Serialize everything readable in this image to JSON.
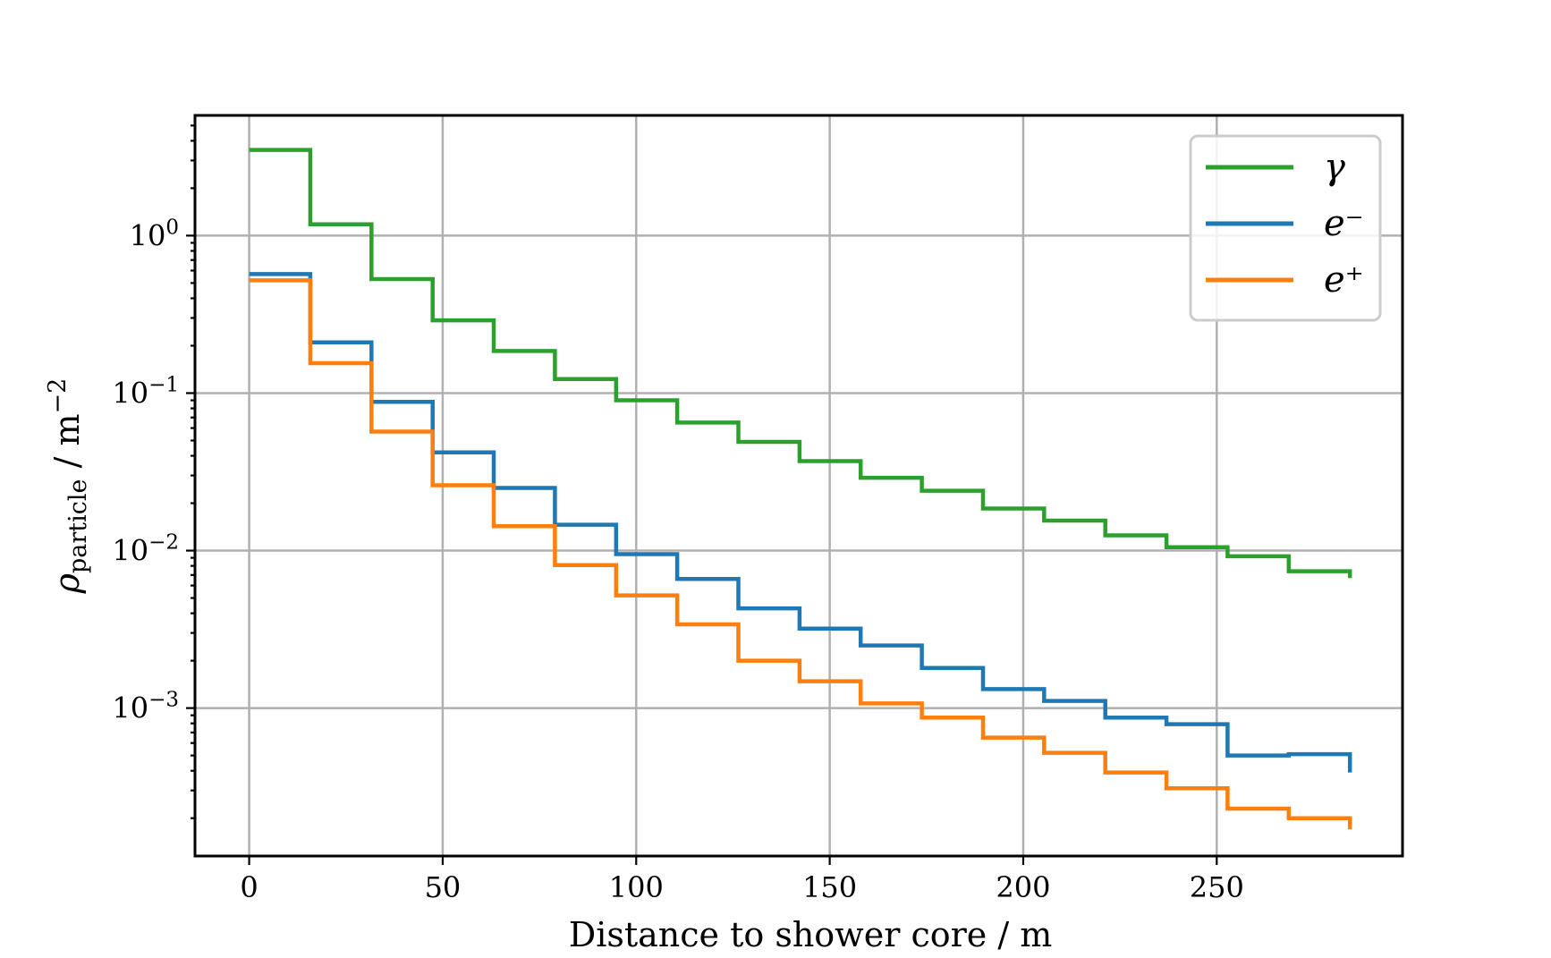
{
  "chart_data": {
    "type": "line",
    "drawstyle": "steps",
    "xlabel": "Distance to shower core / m",
    "ylabel_main": "ρ",
    "ylabel_sub": "particle",
    "ylabel_unit": " / m",
    "ylabel_unit_exp": "−2",
    "yscale": "log",
    "xlim": [
      -14,
      298
    ],
    "ylim": [
      0.000115,
      5.8
    ],
    "grid": true,
    "legend_position": "top-right",
    "x_ticks": [
      {
        "value": 0,
        "label": "0"
      },
      {
        "value": 50,
        "label": "50"
      },
      {
        "value": 100,
        "label": "100"
      },
      {
        "value": 150,
        "label": "150"
      },
      {
        "value": 200,
        "label": "200"
      },
      {
        "value": 250,
        "label": "250"
      }
    ],
    "y_ticks": [
      {
        "value": 1,
        "base": "10",
        "exp": "0"
      },
      {
        "value": 0.1,
        "base": "10",
        "exp": "−1"
      },
      {
        "value": 0.01,
        "base": "10",
        "exp": "−2"
      },
      {
        "value": 0.001,
        "base": "10",
        "exp": "−3"
      }
    ],
    "bin_edges": [
      0,
      15.8,
      31.6,
      47.4,
      63.2,
      79,
      94.8,
      110.6,
      126.4,
      142.2,
      158,
      173.8,
      189.6,
      205.4,
      221.2,
      237,
      252.8,
      268.6,
      284.4
    ],
    "series": [
      {
        "name": "γ",
        "color": "#2ca02c",
        "values": [
          3.5,
          1.18,
          0.53,
          0.29,
          0.185,
          0.123,
          0.09,
          0.065,
          0.049,
          0.037,
          0.029,
          0.024,
          0.0185,
          0.0155,
          0.0125,
          0.0105,
          0.0092,
          0.0074
        ],
        "end_value": 0.0067
      },
      {
        "name": "e⁻",
        "color": "#1f77b4",
        "values": [
          0.57,
          0.21,
          0.088,
          0.042,
          0.025,
          0.0146,
          0.0095,
          0.0066,
          0.0043,
          0.0032,
          0.0025,
          0.0018,
          0.00132,
          0.00111,
          0.00087,
          0.00079,
          0.0005,
          0.00051
        ],
        "end_value": 0.00039
      },
      {
        "name": "e⁺",
        "color": "#ff7f0e",
        "values": [
          0.52,
          0.155,
          0.057,
          0.026,
          0.0143,
          0.0081,
          0.0052,
          0.0034,
          0.002,
          0.00148,
          0.00107,
          0.00087,
          0.00065,
          0.00052,
          0.00039,
          0.00031,
          0.00023,
          0.0002
        ],
        "end_value": 0.00017
      }
    ]
  }
}
